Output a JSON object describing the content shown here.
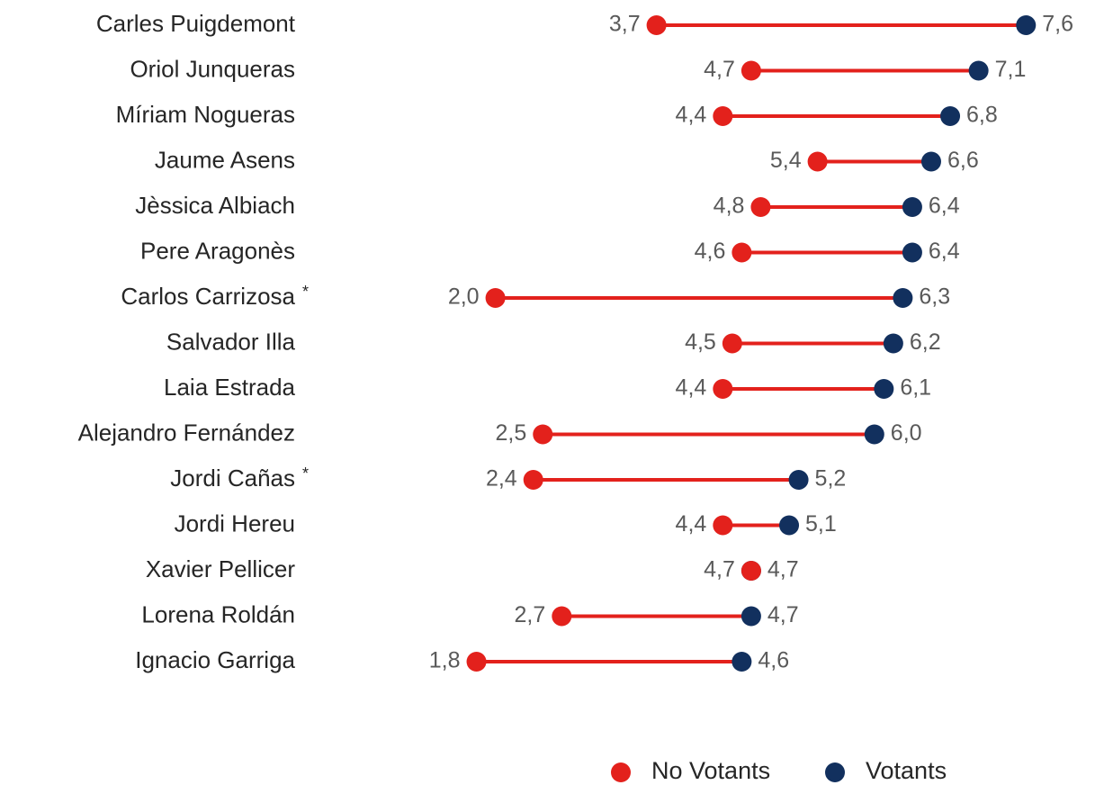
{
  "chart_data": {
    "type": "dumbbell",
    "categories": [
      "Carles Puigdemont",
      "Oriol Junqueras",
      "Míriam Nogueras",
      "Jaume Asens",
      "Jèssica Albiach",
      "Pere Aragonès",
      "Carlos Carrizosa",
      "Salvador Illa",
      "Laia Estrada",
      "Alejandro Fernández",
      "Jordi Cañas",
      "Jordi Hereu",
      "Xavier Pellicer",
      "Lorena Roldán",
      "Ignacio Garriga"
    ],
    "category_notes": [
      null,
      null,
      null,
      null,
      null,
      null,
      "*",
      null,
      null,
      null,
      "*",
      null,
      null,
      null,
      null
    ],
    "series": [
      {
        "name": "No Votants",
        "color": "#e3211c",
        "values": [
          3.7,
          4.7,
          4.4,
          5.4,
          4.8,
          4.6,
          2.0,
          4.5,
          4.4,
          2.5,
          2.4,
          4.4,
          4.7,
          2.7,
          1.8
        ],
        "value_labels": [
          "3,7",
          "4,7",
          "4,4",
          "5,4",
          "4,8",
          "4,6",
          "2,0",
          "4,5",
          "4,4",
          "2,5",
          "2,4",
          "4,4",
          "4,7",
          "2,7",
          "1,8"
        ]
      },
      {
        "name": "Votants",
        "color": "#12305e",
        "values": [
          7.6,
          7.1,
          6.8,
          6.6,
          6.4,
          6.4,
          6.3,
          6.2,
          6.1,
          6.0,
          5.2,
          5.1,
          4.7,
          4.7,
          4.6
        ],
        "value_labels": [
          "7,6",
          "7,1",
          "6,8",
          "6,6",
          "6,4",
          "6,4",
          "6,3",
          "6,2",
          "6,1",
          "6,0",
          "5,2",
          "5,1",
          "4,7",
          "4,7",
          "4,6"
        ]
      }
    ],
    "line_color": "#e3211c",
    "legend": "bottom"
  }
}
